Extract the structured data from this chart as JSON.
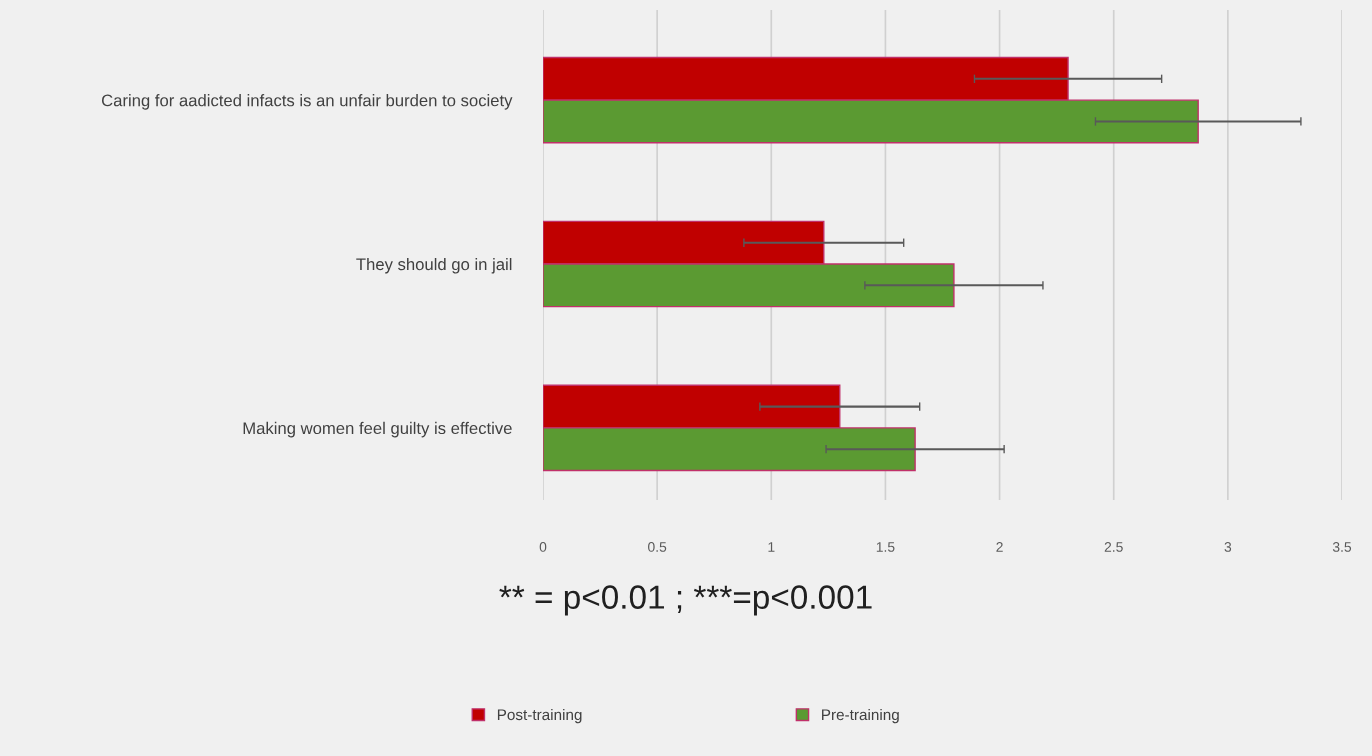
{
  "chart_data": {
    "type": "bar",
    "orientation": "horizontal",
    "categories": [
      "Caring for aadicted infacts is an unfair burden to society",
      "They should go in jail",
      "Making women feel guilty is effective"
    ],
    "series": [
      {
        "name": "Post-training",
        "color": "#c00000",
        "values": [
          2.3,
          1.23,
          1.3
        ],
        "errors": [
          0.41,
          0.35,
          0.35
        ]
      },
      {
        "name": "Pre-training",
        "color": "#5b9a32",
        "values": [
          2.87,
          1.8,
          1.63
        ],
        "errors": [
          0.45,
          0.39,
          0.39
        ]
      }
    ],
    "xlim": [
      0,
      3.5
    ],
    "xticks": [
      0,
      0.5,
      1,
      1.5,
      2,
      2.5,
      3,
      3.5
    ],
    "grid": "x",
    "legend": "bottom",
    "annotations": [
      "** = p<0.01 ; ***=p<0.001"
    ]
  }
}
